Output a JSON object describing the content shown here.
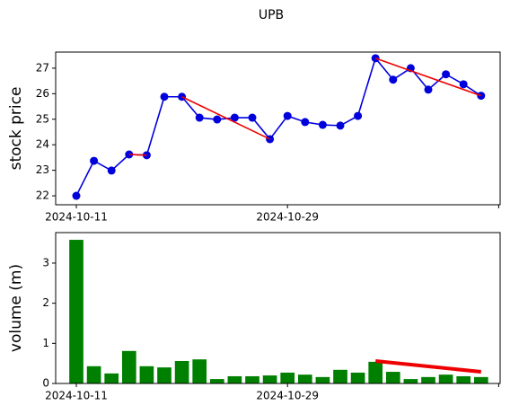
{
  "title": "UPB",
  "chart_data": [
    {
      "type": "line",
      "ylabel": "stock price",
      "ylabel_color": "#0000cc",
      "categories": [
        "2024-10-11",
        null,
        null,
        null,
        null,
        null,
        null,
        null,
        null,
        null,
        null,
        null,
        "2024-10-29",
        null,
        null,
        null,
        null,
        null,
        null,
        null,
        null,
        null,
        null,
        null
      ],
      "series": [
        {
          "color": "#0000dd",
          "values": [
            22.0,
            23.37,
            22.99,
            23.62,
            23.59,
            25.88,
            25.88,
            25.06,
            24.99,
            25.06,
            25.06,
            24.22,
            25.13,
            24.89,
            24.78,
            24.75,
            25.13,
            27.39,
            26.55,
            27.0,
            26.16,
            26.76,
            26.37,
            25.92
          ]
        }
      ],
      "trend_lines": [
        {
          "from": 3,
          "to": 4,
          "values": [
            23.62,
            23.59
          ]
        },
        {
          "from": 6,
          "to": 11,
          "values": [
            25.88,
            24.22
          ]
        },
        {
          "from": 17,
          "to": 23,
          "values": [
            27.39,
            25.92
          ]
        }
      ],
      "trend_color": "#ee0000",
      "ylim": [
        21.65,
        27.63
      ],
      "yticks": [
        22,
        23,
        24,
        25,
        26,
        27
      ]
    },
    {
      "type": "bar",
      "ylabel": "volume (m)",
      "ylabel_color": "#008000",
      "categories": [
        "2024-10-11",
        null,
        null,
        null,
        null,
        null,
        null,
        null,
        null,
        null,
        null,
        null,
        "2024-10-29",
        null,
        null,
        null,
        null,
        null,
        null,
        null,
        null,
        null,
        null,
        null
      ],
      "series": [
        {
          "color": "#008000",
          "values": [
            3.58,
            0.43,
            0.25,
            0.81,
            0.43,
            0.4,
            0.56,
            0.6,
            0.11,
            0.18,
            0.18,
            0.2,
            0.27,
            0.22,
            0.16,
            0.34,
            0.27,
            0.54,
            0.29,
            0.11,
            0.16,
            0.22,
            0.18,
            0.16
          ]
        }
      ],
      "trend_lines": [
        {
          "from": 17,
          "to": 23,
          "values": [
            0.56,
            0.29
          ]
        }
      ],
      "trend_color": "#ee0000",
      "ylim": [
        0,
        3.76
      ],
      "yticks": [
        0,
        1,
        2,
        3
      ]
    }
  ]
}
